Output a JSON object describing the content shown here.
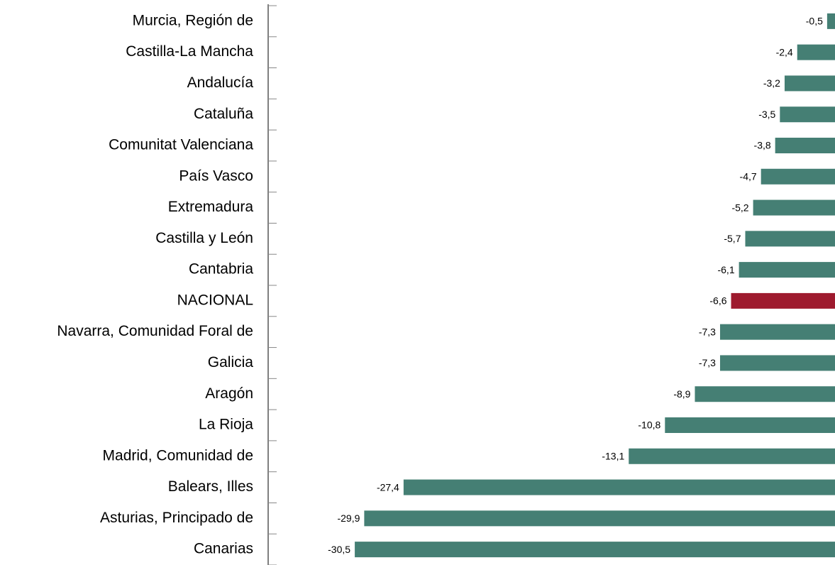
{
  "chart_data": {
    "type": "hbar",
    "categories": [
      "Murcia, Región de",
      "Castilla-La Mancha",
      "Andalucía",
      "Cataluña",
      "Comunitat Valenciana",
      "País Vasco",
      "Extremadura",
      "Castilla y León",
      "Cantabria",
      "NACIONAL",
      "Navarra, Comunidad Foral de",
      "Galicia",
      "Aragón",
      "La Rioja",
      "Madrid, Comunidad de",
      "Balears, Illes",
      "Asturias, Principado de",
      "Canarias"
    ],
    "values": [
      -0.5,
      -2.4,
      -3.2,
      -3.5,
      -3.8,
      -4.7,
      -5.2,
      -5.7,
      -6.1,
      -6.6,
      -7.3,
      -7.3,
      -8.9,
      -10.8,
      -13.1,
      -27.4,
      -29.9,
      -30.5
    ],
    "value_labels": [
      "-0,5",
      "-2,4",
      "-3,2",
      "-3,5",
      "-3,8",
      "-4,7",
      "-5,2",
      "-5,7",
      "-6,1",
      "-6,6",
      "-7,3",
      "-7,3",
      "-8,9",
      "-10,8",
      "-13,1",
      "-27,4",
      "-29,9",
      "-30,5"
    ],
    "colors": [
      "#457f74",
      "#457f74",
      "#457f74",
      "#457f74",
      "#457f74",
      "#457f74",
      "#457f74",
      "#457f74",
      "#457f74",
      "#9e1a2e",
      "#457f74",
      "#457f74",
      "#457f74",
      "#457f74",
      "#457f74",
      "#457f74",
      "#457f74",
      "#457f74"
    ],
    "xlim": [
      -36,
      0
    ]
  }
}
